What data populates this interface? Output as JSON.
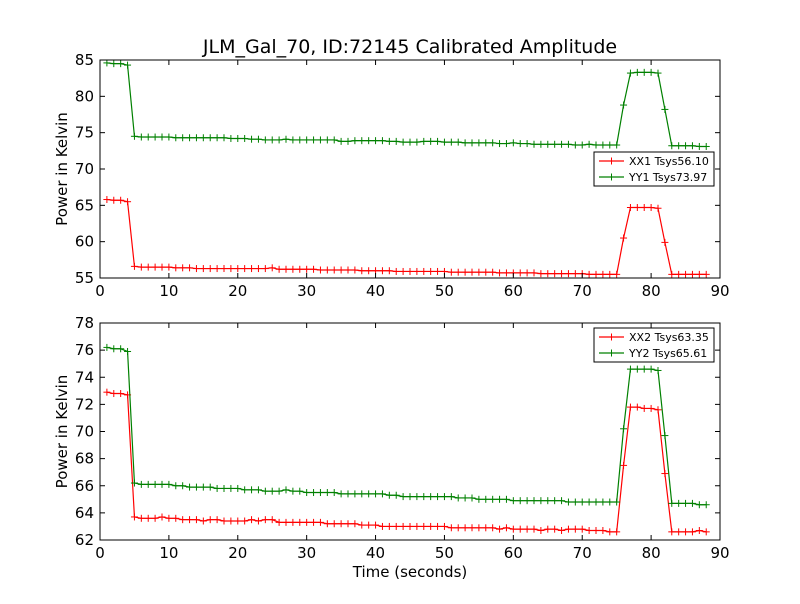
{
  "figure": {
    "background": "#ffffff",
    "series_colors": {
      "xx": "#ff0000",
      "yy": "#008000"
    }
  },
  "chart_data": [
    {
      "type": "line",
      "title": "JLM_Gal_70, ID:72145 Calibrated Amplitude",
      "xlabel": "",
      "ylabel": "Power in Kelvin",
      "xlim": [
        0,
        90
      ],
      "ylim": [
        55,
        85
      ],
      "xticks": [
        0,
        10,
        20,
        30,
        40,
        50,
        60,
        70,
        80,
        90
      ],
      "yticks": [
        55,
        60,
        65,
        70,
        75,
        80,
        85
      ],
      "grid": false,
      "legend": "center-right",
      "marker": "+",
      "series": [
        {
          "name": "XX1 Tsys56.10",
          "color": "#ff0000",
          "x": [
            1,
            2,
            3,
            4,
            5,
            6,
            7,
            8,
            9,
            10,
            11,
            12,
            13,
            14,
            15,
            16,
            17,
            18,
            19,
            20,
            21,
            22,
            23,
            24,
            25,
            26,
            27,
            28,
            29,
            30,
            31,
            32,
            33,
            34,
            35,
            36,
            37,
            38,
            39,
            40,
            41,
            42,
            43,
            44,
            45,
            46,
            47,
            48,
            49,
            50,
            51,
            52,
            53,
            54,
            55,
            56,
            57,
            58,
            59,
            60,
            61,
            62,
            63,
            64,
            65,
            66,
            67,
            68,
            69,
            70,
            71,
            72,
            73,
            74,
            75,
            76,
            77,
            78,
            79,
            80,
            81,
            82,
            83,
            84,
            85,
            86,
            87,
            88
          ],
          "y": [
            65.8,
            65.7,
            65.7,
            65.5,
            56.6,
            56.5,
            56.5,
            56.5,
            56.5,
            56.5,
            56.4,
            56.4,
            56.4,
            56.3,
            56.3,
            56.3,
            56.3,
            56.3,
            56.3,
            56.3,
            56.3,
            56.3,
            56.3,
            56.3,
            56.4,
            56.2,
            56.2,
            56.2,
            56.2,
            56.2,
            56.2,
            56.1,
            56.1,
            56.1,
            56.1,
            56.1,
            56.1,
            56.0,
            56.0,
            56.0,
            56.0,
            56.0,
            55.9,
            55.9,
            55.9,
            55.9,
            55.9,
            55.9,
            55.9,
            55.9,
            55.8,
            55.8,
            55.8,
            55.8,
            55.8,
            55.8,
            55.8,
            55.7,
            55.7,
            55.7,
            55.7,
            55.7,
            55.7,
            55.6,
            55.6,
            55.6,
            55.6,
            55.6,
            55.6,
            55.6,
            55.5,
            55.5,
            55.5,
            55.5,
            55.5,
            60.5,
            64.7,
            64.7,
            64.7,
            64.7,
            64.6,
            59.9,
            55.5,
            55.5,
            55.5,
            55.5,
            55.5,
            55.5
          ]
        },
        {
          "name": "YY1 Tsys73.97",
          "color": "#008000",
          "x": [
            1,
            2,
            3,
            4,
            5,
            6,
            7,
            8,
            9,
            10,
            11,
            12,
            13,
            14,
            15,
            16,
            17,
            18,
            19,
            20,
            21,
            22,
            23,
            24,
            25,
            26,
            27,
            28,
            29,
            30,
            31,
            32,
            33,
            34,
            35,
            36,
            37,
            38,
            39,
            40,
            41,
            42,
            43,
            44,
            45,
            46,
            47,
            48,
            49,
            50,
            51,
            52,
            53,
            54,
            55,
            56,
            57,
            58,
            59,
            60,
            61,
            62,
            63,
            64,
            65,
            66,
            67,
            68,
            69,
            70,
            71,
            72,
            73,
            74,
            75,
            76,
            77,
            78,
            79,
            80,
            81,
            82,
            83,
            84,
            85,
            86,
            87,
            88
          ],
          "y": [
            84.6,
            84.5,
            84.5,
            84.3,
            74.5,
            74.4,
            74.4,
            74.4,
            74.4,
            74.4,
            74.3,
            74.3,
            74.3,
            74.3,
            74.3,
            74.3,
            74.3,
            74.3,
            74.2,
            74.2,
            74.2,
            74.1,
            74.1,
            74.0,
            74.0,
            74.0,
            74.1,
            74.0,
            74.0,
            74.0,
            74.0,
            74.0,
            74.0,
            74.0,
            73.8,
            73.8,
            73.9,
            73.9,
            73.9,
            73.9,
            73.9,
            73.8,
            73.8,
            73.7,
            73.7,
            73.7,
            73.8,
            73.8,
            73.8,
            73.7,
            73.7,
            73.7,
            73.6,
            73.6,
            73.6,
            73.6,
            73.6,
            73.5,
            73.5,
            73.6,
            73.5,
            73.5,
            73.4,
            73.4,
            73.4,
            73.4,
            73.4,
            73.4,
            73.3,
            73.3,
            73.4,
            73.3,
            73.3,
            73.3,
            73.3,
            78.8,
            83.2,
            83.3,
            83.3,
            83.3,
            83.2,
            78.2,
            73.2,
            73.2,
            73.2,
            73.2,
            73.1,
            73.1
          ]
        }
      ]
    },
    {
      "type": "line",
      "title": "",
      "xlabel": "Time (seconds)",
      "ylabel": "Power in Kelvin",
      "xlim": [
        0,
        90
      ],
      "ylim": [
        62,
        78
      ],
      "xticks": [
        0,
        10,
        20,
        30,
        40,
        50,
        60,
        70,
        80,
        90
      ],
      "yticks": [
        62,
        64,
        66,
        68,
        70,
        72,
        74,
        76,
        78
      ],
      "grid": false,
      "legend": "top-right",
      "marker": "+",
      "series": [
        {
          "name": "XX2 Tsys63.35",
          "color": "#ff0000",
          "x": [
            1,
            2,
            3,
            4,
            5,
            6,
            7,
            8,
            9,
            10,
            11,
            12,
            13,
            14,
            15,
            16,
            17,
            18,
            19,
            20,
            21,
            22,
            23,
            24,
            25,
            26,
            27,
            28,
            29,
            30,
            31,
            32,
            33,
            34,
            35,
            36,
            37,
            38,
            39,
            40,
            41,
            42,
            43,
            44,
            45,
            46,
            47,
            48,
            49,
            50,
            51,
            52,
            53,
            54,
            55,
            56,
            57,
            58,
            59,
            60,
            61,
            62,
            63,
            64,
            65,
            66,
            67,
            68,
            69,
            70,
            71,
            72,
            73,
            74,
            75,
            76,
            77,
            78,
            79,
            80,
            81,
            82,
            83,
            84,
            85,
            86,
            87,
            88
          ],
          "y": [
            72.9,
            72.8,
            72.8,
            72.7,
            63.7,
            63.6,
            63.6,
            63.6,
            63.7,
            63.6,
            63.6,
            63.5,
            63.5,
            63.5,
            63.4,
            63.5,
            63.5,
            63.4,
            63.4,
            63.4,
            63.4,
            63.5,
            63.4,
            63.5,
            63.5,
            63.3,
            63.3,
            63.3,
            63.3,
            63.3,
            63.3,
            63.3,
            63.2,
            63.2,
            63.2,
            63.2,
            63.2,
            63.1,
            63.1,
            63.1,
            63.0,
            63.0,
            63.0,
            63.0,
            63.0,
            63.0,
            63.0,
            63.0,
            63.0,
            63.0,
            62.9,
            62.9,
            62.9,
            62.9,
            62.9,
            62.9,
            62.9,
            62.8,
            62.9,
            62.8,
            62.8,
            62.8,
            62.8,
            62.7,
            62.8,
            62.8,
            62.7,
            62.8,
            62.8,
            62.8,
            62.7,
            62.7,
            62.7,
            62.6,
            62.6,
            67.5,
            71.8,
            71.8,
            71.7,
            71.7,
            71.6,
            66.9,
            62.6,
            62.6,
            62.6,
            62.6,
            62.7,
            62.6
          ]
        },
        {
          "name": "YY2 Tsys65.61",
          "color": "#008000",
          "x": [
            1,
            2,
            3,
            4,
            5,
            6,
            7,
            8,
            9,
            10,
            11,
            12,
            13,
            14,
            15,
            16,
            17,
            18,
            19,
            20,
            21,
            22,
            23,
            24,
            25,
            26,
            27,
            28,
            29,
            30,
            31,
            32,
            33,
            34,
            35,
            36,
            37,
            38,
            39,
            40,
            41,
            42,
            43,
            44,
            45,
            46,
            47,
            48,
            49,
            50,
            51,
            52,
            53,
            54,
            55,
            56,
            57,
            58,
            59,
            60,
            61,
            62,
            63,
            64,
            65,
            66,
            67,
            68,
            69,
            70,
            71,
            72,
            73,
            74,
            75,
            76,
            77,
            78,
            79,
            80,
            81,
            82,
            83,
            84,
            85,
            86,
            87,
            88
          ],
          "y": [
            76.2,
            76.1,
            76.1,
            75.9,
            66.2,
            66.1,
            66.1,
            66.1,
            66.1,
            66.1,
            66.0,
            66.0,
            65.9,
            65.9,
            65.9,
            65.9,
            65.8,
            65.8,
            65.8,
            65.8,
            65.7,
            65.7,
            65.7,
            65.6,
            65.6,
            65.6,
            65.7,
            65.6,
            65.6,
            65.5,
            65.5,
            65.5,
            65.5,
            65.5,
            65.4,
            65.4,
            65.4,
            65.4,
            65.4,
            65.4,
            65.4,
            65.3,
            65.3,
            65.2,
            65.2,
            65.2,
            65.2,
            65.2,
            65.2,
            65.2,
            65.2,
            65.1,
            65.1,
            65.1,
            65.0,
            65.0,
            65.0,
            65.0,
            65.0,
            64.9,
            64.9,
            64.9,
            64.9,
            64.9,
            64.9,
            64.9,
            64.9,
            64.8,
            64.8,
            64.8,
            64.8,
            64.8,
            64.8,
            64.8,
            64.8,
            70.2,
            74.6,
            74.6,
            74.6,
            74.6,
            74.5,
            69.7,
            64.7,
            64.7,
            64.7,
            64.7,
            64.6,
            64.6
          ]
        }
      ]
    }
  ]
}
